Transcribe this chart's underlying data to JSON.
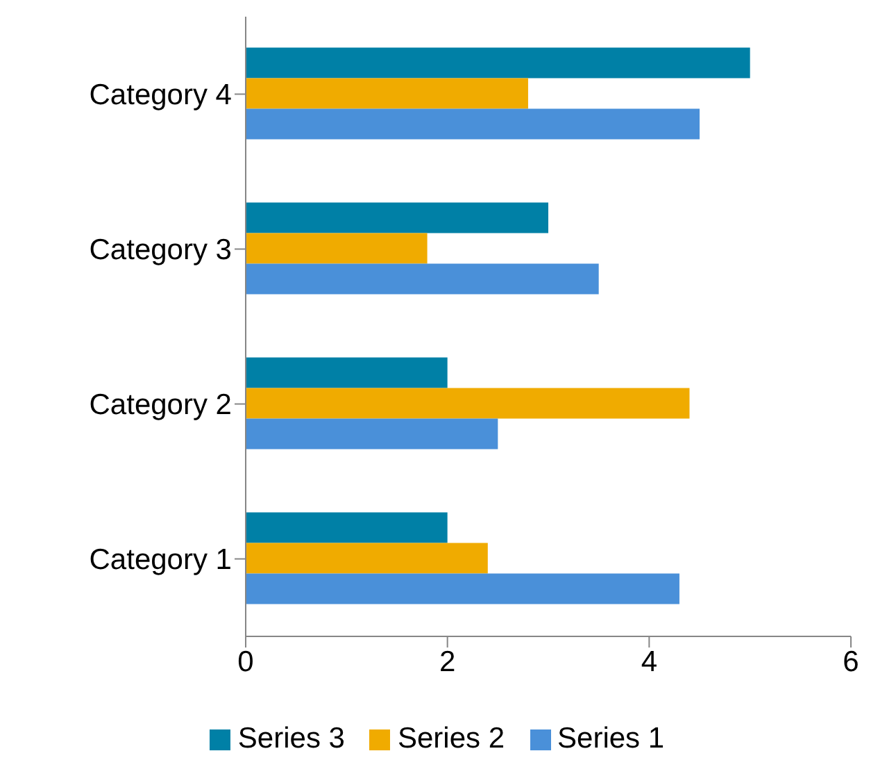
{
  "chart_data": {
    "type": "bar",
    "orientation": "horizontal",
    "categories": [
      "Category 4",
      "Category 3",
      "Category 2",
      "Category 1"
    ],
    "series": [
      {
        "name": "Series 3",
        "color": "#0080a6",
        "values": [
          5,
          3,
          2,
          2
        ]
      },
      {
        "name": "Series 2",
        "color": "#f0ab00",
        "values": [
          2.8,
          1.8,
          4.4,
          2.4
        ]
      },
      {
        "name": "Series 1",
        "color": "#4a90d9",
        "values": [
          4.5,
          3.5,
          2.5,
          4.3
        ]
      }
    ],
    "xlim": [
      0,
      6
    ],
    "xticks": [
      0,
      2,
      4,
      6
    ],
    "legend": "bottom"
  }
}
